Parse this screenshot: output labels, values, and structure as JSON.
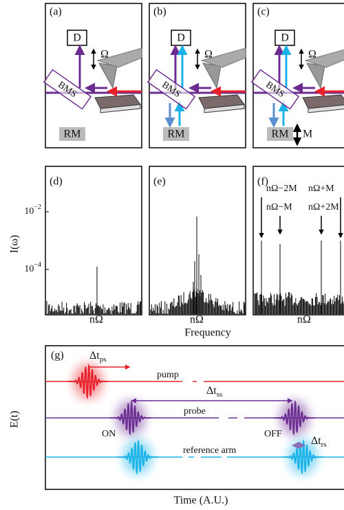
{
  "setup_panels": [
    {
      "label": "(a)",
      "detector": "D",
      "modulation": "Ω",
      "splitter": "BMS",
      "mirror": "RM"
    },
    {
      "label": "(b)",
      "detector": "D",
      "modulation": "Ω",
      "splitter": "BMS",
      "mirror": "RM"
    },
    {
      "label": "(c)",
      "detector": "D",
      "modulation": "Ω",
      "splitter": "BMS",
      "mirror": "RM",
      "mirror_modulation": "M"
    }
  ],
  "spectra": {
    "y_label": "I(ω)",
    "y_ticks": [
      {
        "base": "10",
        "exp": "−2"
      },
      {
        "base": "10",
        "exp": "−4"
      }
    ],
    "x_label": "Frequency",
    "panels": [
      {
        "label": "(d)",
        "x_tick": "nΩ"
      },
      {
        "label": "(e)",
        "x_tick": "nΩ"
      },
      {
        "label": "(f)",
        "x_tick": "nΩ"
      }
    ],
    "sidebands": [
      "nΩ−2M",
      "nΩ−M",
      "nΩ+M",
      "nΩ+2M"
    ]
  },
  "timing": {
    "label": "(g)",
    "y_label": "E(t)",
    "x_label": "Time (A.U.)",
    "pump": "pump",
    "probe": "probe",
    "reference": "reference arm",
    "on": "ON",
    "off": "OFF",
    "delays": [
      {
        "main": "Δt",
        "sub": "ps"
      },
      {
        "main": "Δt",
        "sub": "ss"
      },
      {
        "main": "Δt",
        "sub": "rs"
      }
    ]
  }
}
